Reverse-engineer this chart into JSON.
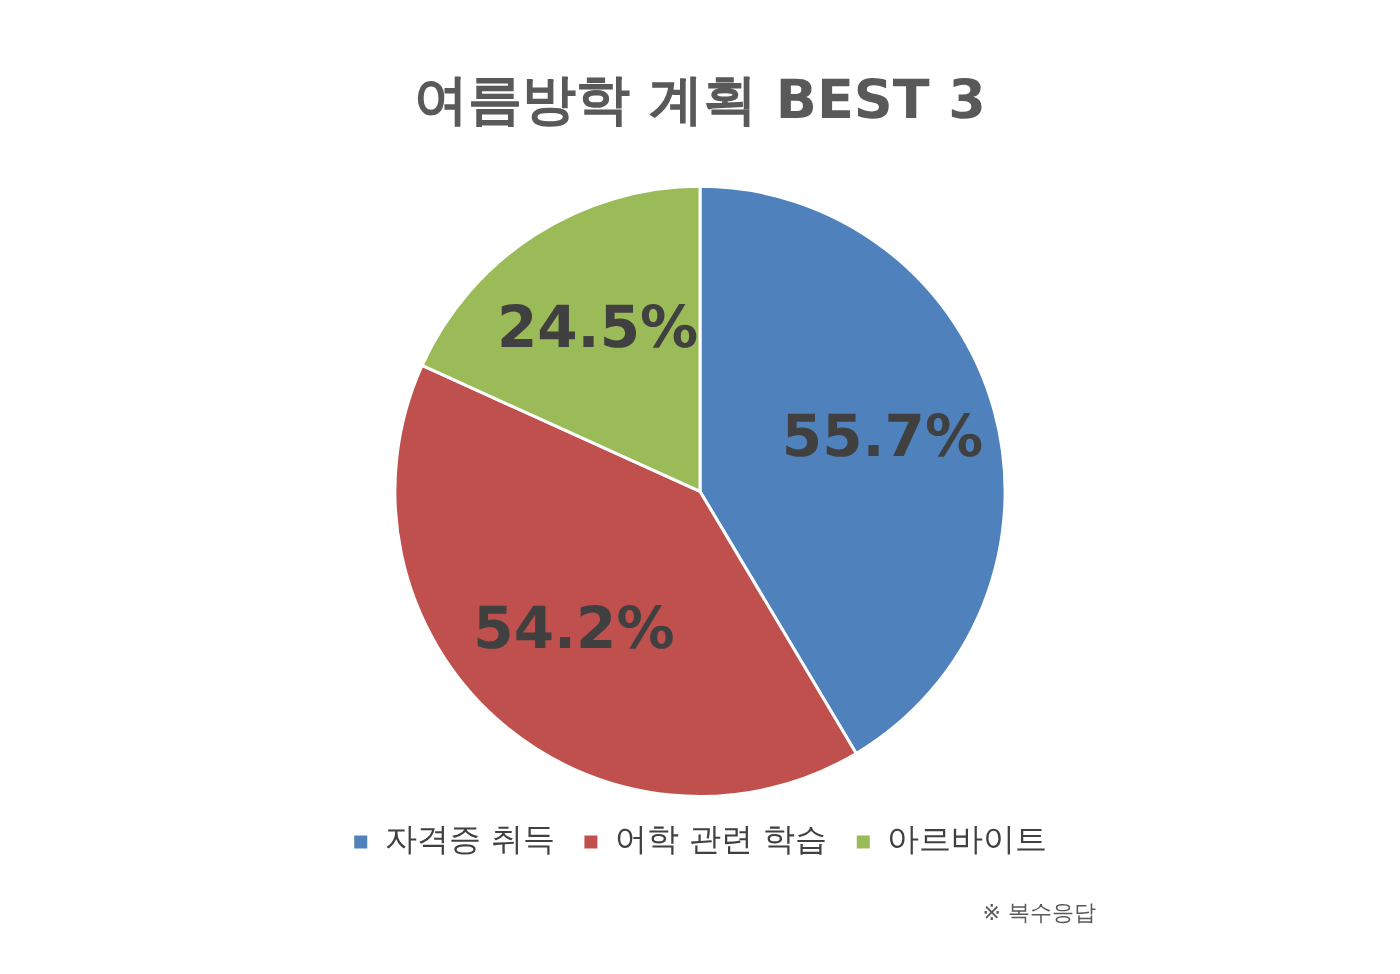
{
  "chart_data": {
    "type": "pie",
    "title": "여름방학 계획 BEST 3",
    "categories": [
      "자격증 취득",
      "어학 관련 학습",
      "아르바이트"
    ],
    "values": [
      55.7,
      54.2,
      24.5
    ],
    "colors": [
      "#4f81bd",
      "#c0504d",
      "#9bbb59"
    ],
    "value_labels": [
      "55.7%",
      "54.2%",
      "24.5%"
    ],
    "legend": "bottom",
    "annotations": [
      "※ 복수응답"
    ]
  }
}
